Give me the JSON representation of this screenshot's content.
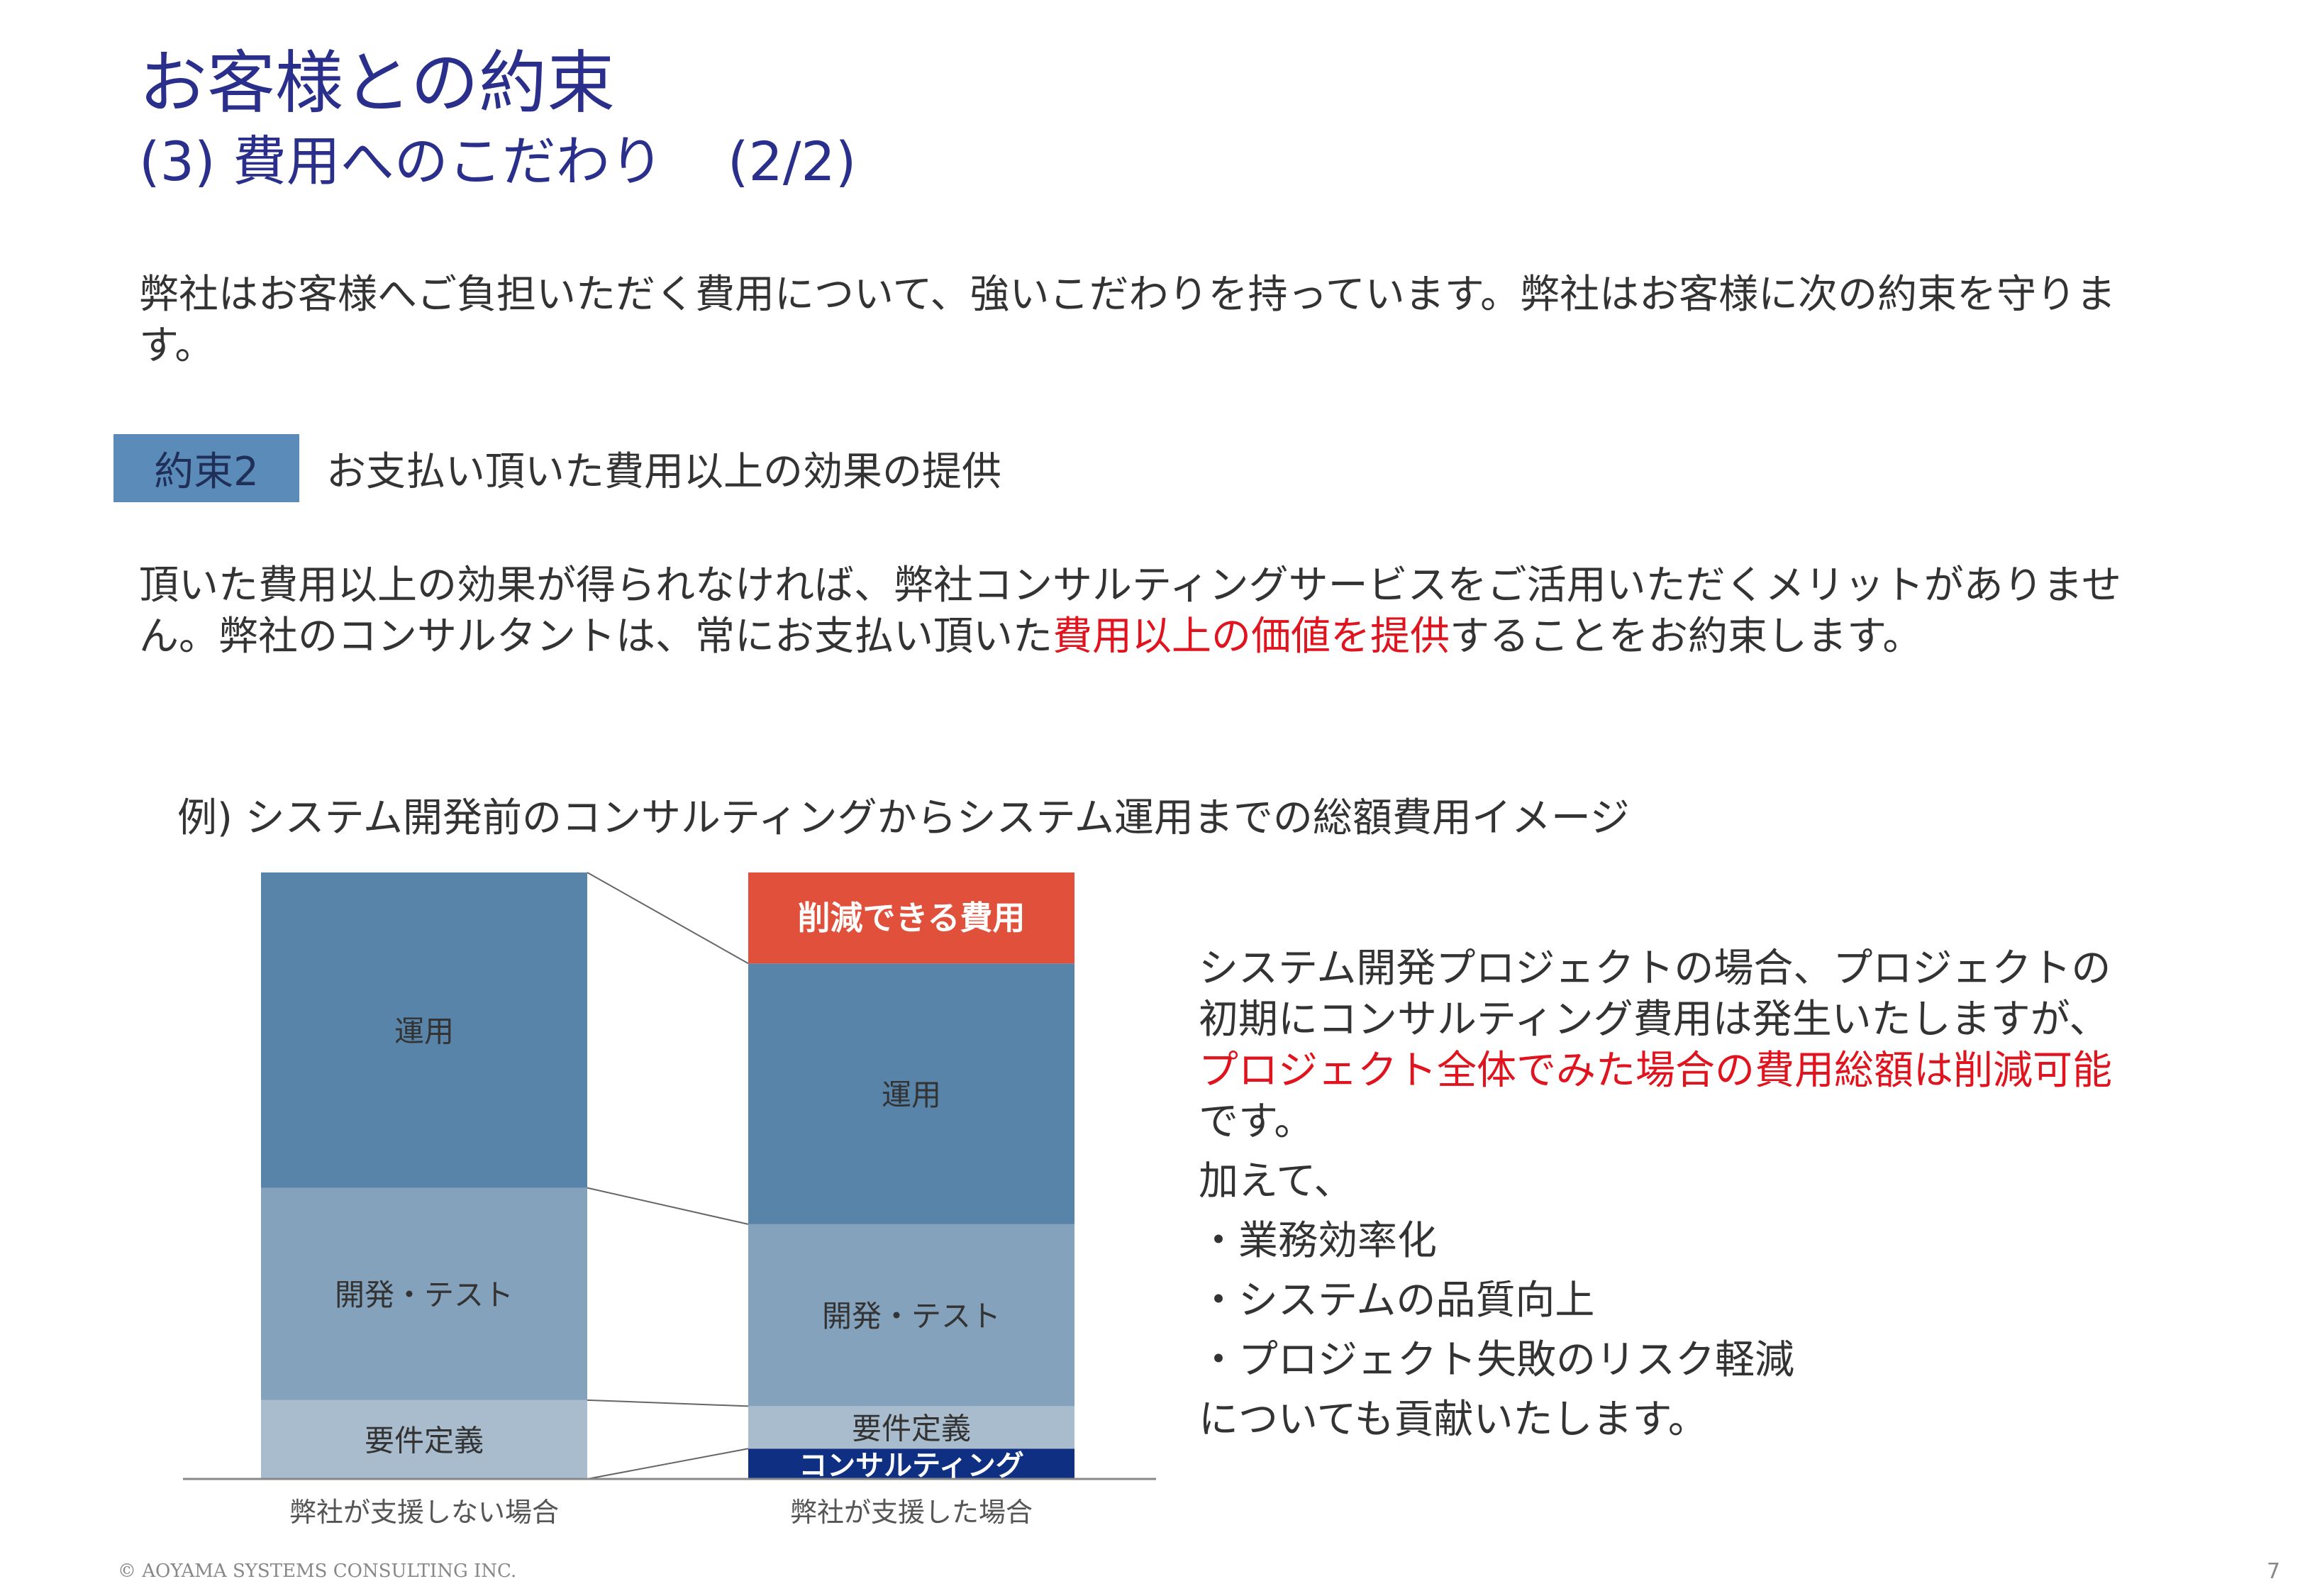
{
  "title": {
    "main": "お客様との約束",
    "sub": "(3) 費用へのこだわり",
    "page": "(2/2)"
  },
  "intro": "弊社はお客様へご負担いただく費用について、強いこだわりを持っています。弊社はお客様に次の約束を守ります。",
  "promise": {
    "label": "約束2",
    "text": "お支払い頂いた費用以上の効果の提供"
  },
  "detail": {
    "before": "頂いた費用以上の効果が得られなければ、弊社コンサルティングサービスをご活用いただくメリットがありません。弊社のコンサルタントは、常にお支払い頂いた",
    "highlight": "費用以上の価値を提供",
    "after": "することをお約束します。"
  },
  "chart_caption": "例) システム開発前のコンサルティングからシステム運用までの総額費用イメージ",
  "chart_data": {
    "type": "bar",
    "stacked": true,
    "categories": [
      "弊社が支援しない場合",
      "弊社が支援した場合"
    ],
    "series": [
      {
        "name": "コンサルティング",
        "values": [
          0,
          5
        ],
        "color": "#0e2f82"
      },
      {
        "name": "要件定義",
        "values": [
          13,
          7
        ],
        "color": "#a9bccd"
      },
      {
        "name": "開発・テスト",
        "values": [
          35,
          30
        ],
        "color": "#84a2bb"
      },
      {
        "name": "運用",
        "values": [
          52,
          43
        ],
        "color": "#5784a8"
      },
      {
        "name": "削減できる費用",
        "values": [
          0,
          15
        ],
        "color": "#e0503a"
      }
    ],
    "grid": false,
    "legend": "none"
  },
  "side": {
    "lines_a": [
      "システム開発プロジェクトの場合、プロジェクトの",
      "初期にコンサルティング費用は発生いたしますが、"
    ],
    "highlight": "プロジェクト全体でみた場合の費用総額は削減可能",
    "end": "です。",
    "addition": "加えて、",
    "bullets": [
      "・業務効率化",
      "・システムの品質向上",
      "・プロジェクト失敗のリスク軽減"
    ],
    "closing": "についても貢献いたします。"
  },
  "footer": "© AOYAMA SYSTEMS CONSULTING INC.",
  "page_number": "7"
}
